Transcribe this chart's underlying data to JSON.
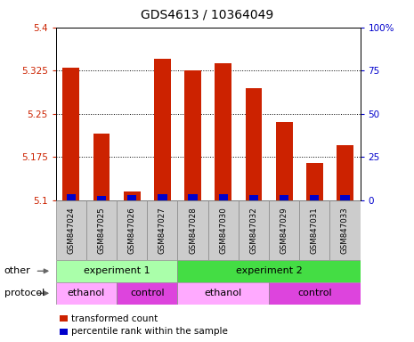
{
  "title": "GDS4613 / 10364049",
  "samples": [
    "GSM847024",
    "GSM847025",
    "GSM847026",
    "GSM847027",
    "GSM847028",
    "GSM847030",
    "GSM847032",
    "GSM847029",
    "GSM847031",
    "GSM847033"
  ],
  "transformed_count": [
    5.33,
    5.215,
    5.115,
    5.345,
    5.325,
    5.338,
    5.295,
    5.235,
    5.165,
    5.195
  ],
  "percentile_rank": [
    3.5,
    2.5,
    3.0,
    3.5,
    3.5,
    3.5,
    3.0,
    3.0,
    3.0,
    3.0
  ],
  "baseline": 5.1,
  "ylim_left": [
    5.1,
    5.4
  ],
  "ylim_right": [
    0,
    100
  ],
  "yticks_left": [
    5.1,
    5.175,
    5.25,
    5.325,
    5.4
  ],
  "yticks_right": [
    0,
    25,
    50,
    75,
    100
  ],
  "ytick_labels_left": [
    "5.1",
    "5.175",
    "5.25",
    "5.325",
    "5.4"
  ],
  "ytick_labels_right": [
    "0",
    "25",
    "50",
    "75",
    "100%"
  ],
  "bar_color_red": "#cc2200",
  "bar_color_blue": "#0000cc",
  "bar_width": 0.55,
  "grid_style": "dotted",
  "grid_color": "#000000",
  "experiment_groups": [
    {
      "label": "experiment 1",
      "start": 0,
      "end": 4,
      "color": "#aaffaa"
    },
    {
      "label": "experiment 2",
      "start": 4,
      "end": 10,
      "color": "#44dd44"
    }
  ],
  "protocol_groups": [
    {
      "label": "ethanol",
      "start": 0,
      "end": 2,
      "color": "#ffaaff"
    },
    {
      "label": "control",
      "start": 2,
      "end": 4,
      "color": "#dd44dd"
    },
    {
      "label": "ethanol",
      "start": 4,
      "end": 7,
      "color": "#ffaaff"
    },
    {
      "label": "control",
      "start": 7,
      "end": 10,
      "color": "#dd44dd"
    }
  ],
  "legend_items": [
    {
      "label": "transformed count",
      "color": "#cc2200"
    },
    {
      "label": "percentile rank within the sample",
      "color": "#0000cc"
    }
  ],
  "other_label": "other",
  "protocol_label": "protocol",
  "sample_row_color": "#cccccc",
  "title_fontsize": 10,
  "tick_fontsize": 7.5,
  "label_fontsize": 8,
  "fig_bg": "#ffffff"
}
